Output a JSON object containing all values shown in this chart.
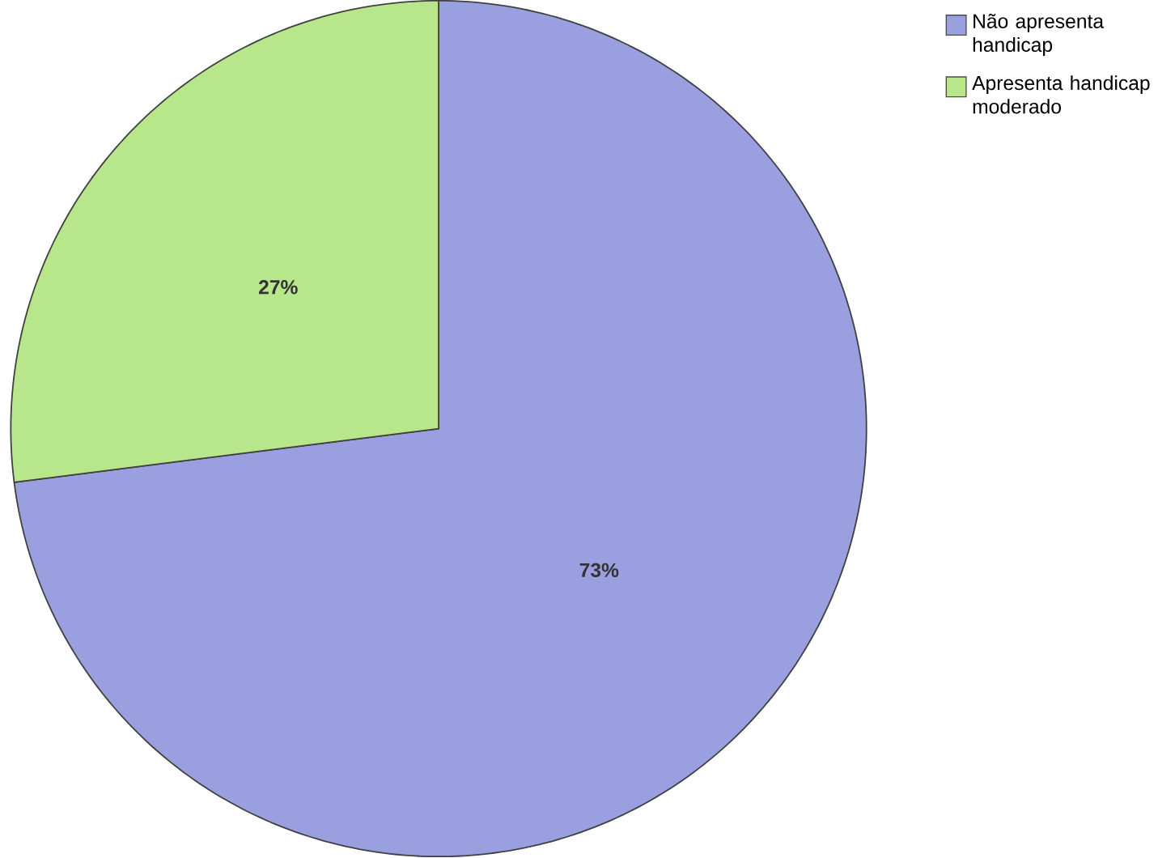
{
  "chart_data": {
    "type": "pie",
    "categories": [
      "Não apresenta handicap",
      "Apresenta handicap moderado"
    ],
    "values": [
      73,
      27
    ],
    "colors": [
      "#9a9fe0",
      "#b8e68a"
    ],
    "value_labels": [
      "73%",
      "27%"
    ],
    "legend": "top right"
  }
}
